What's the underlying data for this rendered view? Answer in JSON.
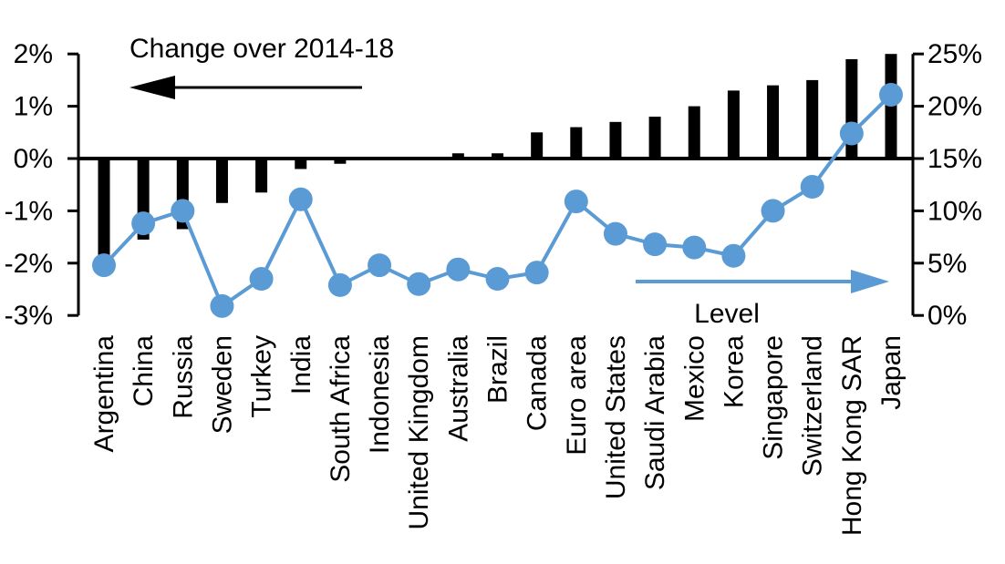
{
  "chart_data": {
    "type": "bar",
    "subtype": "dual-axis combo: bars on left axis, line+markers on right axis",
    "title": "",
    "categories": [
      "Argentina",
      "China",
      "Russia",
      "Sweden",
      "Turkey",
      "India",
      "South Africa",
      "Indonesia",
      "United Kingdom",
      "Australia",
      "Brazil",
      "Canada",
      "Euro area",
      "United States",
      "Saudi Arabia",
      "Mexico",
      "Korea",
      "Singapore",
      "Switzerland",
      "Hong Kong SAR",
      "Japan"
    ],
    "series": [
      {
        "name": "Change over 2014-18",
        "type": "bar",
        "axis": "left",
        "color": "#000000",
        "values": [
          -1.85,
          -1.55,
          -1.35,
          -0.85,
          -0.65,
          -0.2,
          -0.1,
          0,
          0,
          0.1,
          0.1,
          0.5,
          0.6,
          0.7,
          0.8,
          1.0,
          1.3,
          1.4,
          1.5,
          1.9,
          2.0
        ]
      },
      {
        "name": "Level",
        "type": "line",
        "axis": "right",
        "color": "#5B9BD5",
        "values": [
          4.8,
          8.8,
          10.0,
          0.9,
          3.5,
          11.1,
          2.9,
          4.8,
          3.0,
          4.4,
          3.5,
          4.1,
          10.9,
          7.8,
          6.8,
          6.5,
          5.7,
          10.0,
          12.3,
          17.4,
          21.1
        ]
      }
    ],
    "left_axis": {
      "tick_labels": [
        "2%",
        "1%",
        "0%",
        "-1%",
        "-2%",
        "-3%"
      ],
      "tick_values": [
        2,
        1,
        0,
        -1,
        -2,
        -3
      ],
      "min": -3,
      "max": 2
    },
    "right_axis": {
      "tick_labels": [
        "25%",
        "20%",
        "15%",
        "10%",
        "5%",
        "0%"
      ],
      "tick_values": [
        25,
        20,
        15,
        10,
        5,
        0
      ],
      "min": 0,
      "max": 25
    },
    "annotations": [
      {
        "text": "Change over 2014-18",
        "arrow": "left",
        "color": "#000000"
      },
      {
        "text": "Level",
        "arrow": "right",
        "color": "#5B9BD5"
      }
    ],
    "grid": false,
    "legend_position": "none (in-plot annotations with arrows)"
  }
}
